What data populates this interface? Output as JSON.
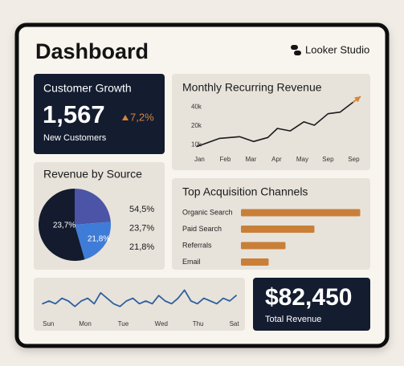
{
  "header": {
    "title": "Dashboard",
    "brand": "Looker Studio"
  },
  "kpis": [
    {
      "title": "Customer Growth",
      "value": "1,567",
      "change": "7,2%",
      "caption": "New Customers"
    },
    {
      "value": "$82,450",
      "caption": "Total Revenue"
    }
  ],
  "chart_data": [
    {
      "type": "line",
      "title": "Monthly Recurring Revenue",
      "x": [
        -0.1,
        0.78,
        1.56,
        2.1,
        2.66,
        3.03,
        3.53,
        4.06,
        4.47,
        5.0,
        5.47,
        5.97
      ],
      "values": [
        9400,
        12700,
        13500,
        11300,
        13100,
        18300,
        16700,
        23300,
        20600,
        31400,
        33400,
        47900
      ],
      "color": "#1b1b1b",
      "arrow_color": "#d9843a",
      "xlim": [
        -0.2,
        6.3
      ],
      "xticks": [
        {
          "value": 0,
          "label": "Jan"
        },
        {
          "value": 1,
          "label": "Feb"
        },
        {
          "value": 2,
          "label": "Mar"
        },
        {
          "value": 3,
          "label": "Apr"
        },
        {
          "value": 4,
          "label": "May"
        },
        {
          "value": 5,
          "label": "Sep"
        },
        {
          "value": 6,
          "label": "Sep"
        }
      ],
      "ylim": [
        8000,
        50000
      ],
      "yticks": [
        {
          "value": 10000,
          "label": "10k"
        },
        {
          "value": 20000,
          "label": "20k"
        },
        {
          "value": 40000,
          "label": "40k"
        }
      ],
      "log_scale": true
    },
    {
      "type": "pie",
      "title": "Revenue by Source",
      "values": [
        54.5,
        23.7,
        21.8
      ],
      "value_labels": [
        "54,5%",
        "23,7%",
        "21,8%"
      ],
      "colors": [
        "#141b2e",
        "#4b54a6",
        "#3f7cd8"
      ]
    },
    {
      "type": "bar",
      "orientation": "horizontal",
      "title": "Top Acquisition Channels",
      "categories": [
        "Organic Search",
        "Paid Search",
        "Referrals",
        "Email"
      ],
      "values": [
        99,
        61,
        37,
        23
      ],
      "xlim": [
        0,
        100
      ],
      "color": "#c97f38"
    },
    {
      "type": "line",
      "x": [
        0,
        1,
        2,
        3,
        4,
        5,
        6,
        7,
        8,
        9,
        10,
        11,
        12,
        13,
        14,
        15,
        16,
        17,
        18,
        19,
        20,
        21,
        22,
        23,
        24,
        25,
        26,
        27,
        28,
        29,
        30
      ],
      "values": [
        4,
        5,
        4,
        6,
        5,
        3,
        5,
        6,
        4,
        8,
        6,
        4,
        3,
        5,
        6,
        4,
        5,
        4,
        7,
        5,
        4,
        6,
        9,
        5,
        4,
        6,
        5,
        4,
        6,
        5,
        7
      ],
      "color": "#2f5f9e",
      "xlim": [
        0,
        30
      ],
      "xticks": [
        {
          "value": 0.9,
          "label": "Sun"
        },
        {
          "value": 6.6,
          "label": "Mon"
        },
        {
          "value": 12.5,
          "label": "Tue"
        },
        {
          "value": 18.4,
          "label": "Wed"
        },
        {
          "value": 24.1,
          "label": "Thu"
        },
        {
          "value": 29.7,
          "label": "Sat"
        }
      ],
      "ylim": [
        0,
        10
      ]
    }
  ]
}
